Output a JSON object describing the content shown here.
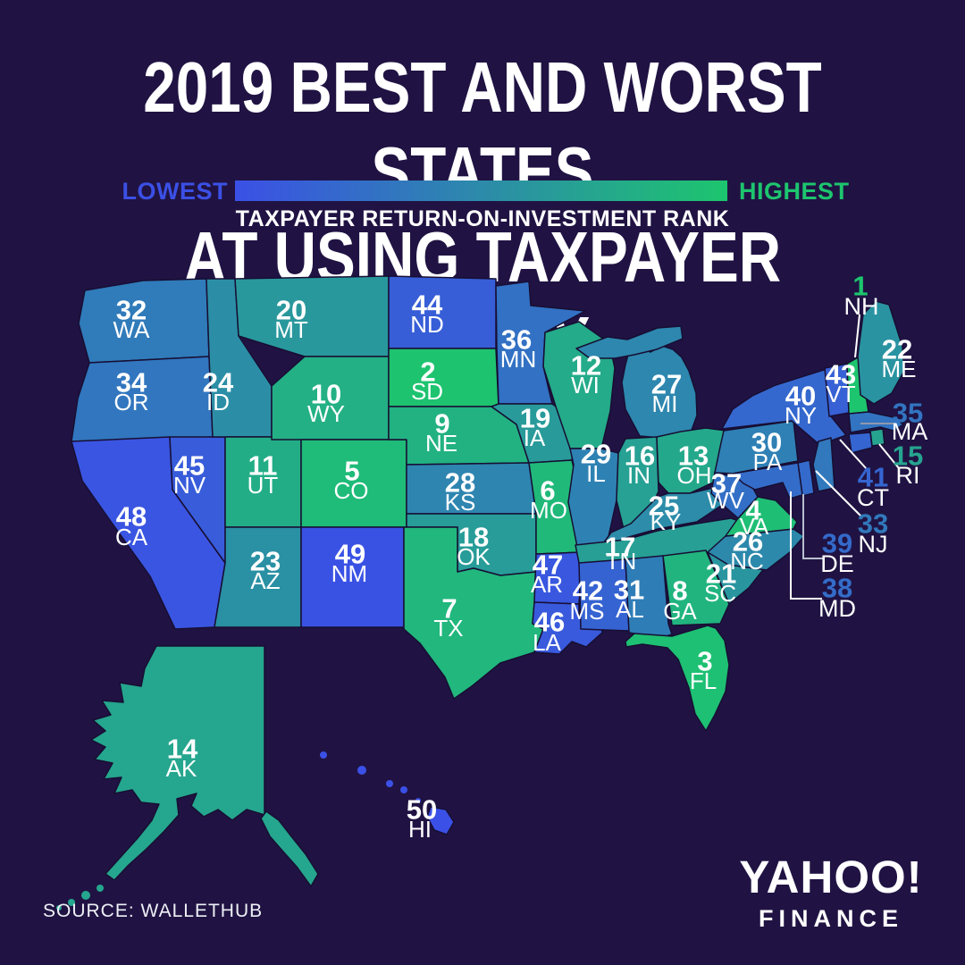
{
  "title": {
    "line1": "2019 BEST AND WORST STATES",
    "line2": "AT USING TAXPAYER MONEY"
  },
  "legend": {
    "low_label": "LOWEST",
    "high_label": "HIGHEST",
    "caption": "TAXPAYER RETURN-ON-INVESTMENT RANK",
    "low_color": "#3B50E6",
    "high_color": "#1DC56E"
  },
  "map": {
    "background_color": "#201343",
    "border_color": "#170e33",
    "scale": {
      "rank1_color": "#1DC56E",
      "rank50_color": "#3B50E6",
      "rank1_meaning": "HIGHEST",
      "rank50_meaning": "LOWEST"
    },
    "callout_states": [
      "NH",
      "MA",
      "RI",
      "CT",
      "NJ",
      "DE",
      "MD"
    ],
    "states": [
      {
        "abbr": "WA",
        "rank": 32
      },
      {
        "abbr": "OR",
        "rank": 34
      },
      {
        "abbr": "CA",
        "rank": 48
      },
      {
        "abbr": "NV",
        "rank": 45
      },
      {
        "abbr": "ID",
        "rank": 24
      },
      {
        "abbr": "UT",
        "rank": 11
      },
      {
        "abbr": "AZ",
        "rank": 23
      },
      {
        "abbr": "MT",
        "rank": 20
      },
      {
        "abbr": "WY",
        "rank": 10
      },
      {
        "abbr": "CO",
        "rank": 5
      },
      {
        "abbr": "NM",
        "rank": 49
      },
      {
        "abbr": "ND",
        "rank": 44
      },
      {
        "abbr": "SD",
        "rank": 2
      },
      {
        "abbr": "NE",
        "rank": 9
      },
      {
        "abbr": "KS",
        "rank": 28
      },
      {
        "abbr": "OK",
        "rank": 18
      },
      {
        "abbr": "TX",
        "rank": 7
      },
      {
        "abbr": "MN",
        "rank": 36
      },
      {
        "abbr": "IA",
        "rank": 19
      },
      {
        "abbr": "MO",
        "rank": 6
      },
      {
        "abbr": "AR",
        "rank": 47
      },
      {
        "abbr": "LA",
        "rank": 46
      },
      {
        "abbr": "WI",
        "rank": 12
      },
      {
        "abbr": "IL",
        "rank": 29
      },
      {
        "abbr": "MI",
        "rank": 27
      },
      {
        "abbr": "IN",
        "rank": 16
      },
      {
        "abbr": "OH",
        "rank": 13
      },
      {
        "abbr": "KY",
        "rank": 25
      },
      {
        "abbr": "TN",
        "rank": 17
      },
      {
        "abbr": "MS",
        "rank": 42
      },
      {
        "abbr": "AL",
        "rank": 31
      },
      {
        "abbr": "GA",
        "rank": 8
      },
      {
        "abbr": "FL",
        "rank": 3
      },
      {
        "abbr": "SC",
        "rank": 21
      },
      {
        "abbr": "NC",
        "rank": 26
      },
      {
        "abbr": "VA",
        "rank": 4
      },
      {
        "abbr": "WV",
        "rank": 37
      },
      {
        "abbr": "PA",
        "rank": 30
      },
      {
        "abbr": "NY",
        "rank": 40
      },
      {
        "abbr": "VT",
        "rank": 43
      },
      {
        "abbr": "NH",
        "rank": 1
      },
      {
        "abbr": "ME",
        "rank": 22
      },
      {
        "abbr": "MA",
        "rank": 35
      },
      {
        "abbr": "RI",
        "rank": 15
      },
      {
        "abbr": "CT",
        "rank": 41
      },
      {
        "abbr": "NJ",
        "rank": 33
      },
      {
        "abbr": "DE",
        "rank": 39
      },
      {
        "abbr": "MD",
        "rank": 38
      },
      {
        "abbr": "AK",
        "rank": 14
      },
      {
        "abbr": "HI",
        "rank": 50
      }
    ]
  },
  "chart_data": {
    "type": "heatmap",
    "title": "2019 BEST AND WORST STATES AT USING TAXPAYER MONEY",
    "metric": "Taxpayer Return-on-Investment Rank (1 = highest, 50 = lowest)",
    "categories": [
      "WA",
      "OR",
      "CA",
      "NV",
      "ID",
      "UT",
      "AZ",
      "MT",
      "WY",
      "CO",
      "NM",
      "ND",
      "SD",
      "NE",
      "KS",
      "OK",
      "TX",
      "MN",
      "IA",
      "MO",
      "AR",
      "LA",
      "WI",
      "IL",
      "MI",
      "IN",
      "OH",
      "KY",
      "TN",
      "MS",
      "AL",
      "GA",
      "FL",
      "SC",
      "NC",
      "VA",
      "WV",
      "PA",
      "NY",
      "VT",
      "NH",
      "ME",
      "MA",
      "RI",
      "CT",
      "NJ",
      "DE",
      "MD",
      "AK",
      "HI"
    ],
    "values": [
      32,
      34,
      48,
      45,
      24,
      11,
      23,
      20,
      10,
      5,
      49,
      44,
      2,
      9,
      28,
      18,
      7,
      36,
      19,
      6,
      47,
      46,
      12,
      29,
      27,
      16,
      13,
      25,
      17,
      42,
      31,
      8,
      3,
      21,
      26,
      4,
      37,
      30,
      40,
      43,
      1,
      22,
      35,
      15,
      41,
      33,
      39,
      38,
      14,
      50
    ],
    "legend_position": "top"
  },
  "source": {
    "label": "SOURCE:",
    "value": "WALLETHUB"
  },
  "branding": {
    "wordmark": "YAHOO!",
    "sub": "FINANCE"
  }
}
